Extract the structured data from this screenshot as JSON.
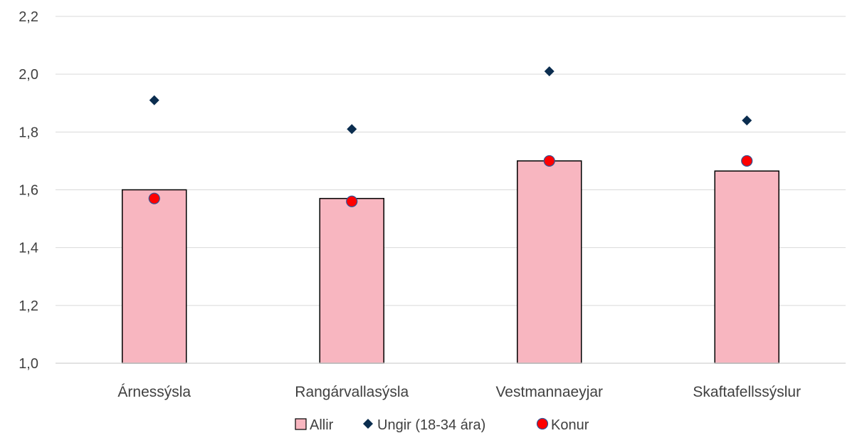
{
  "chart_data": {
    "type": "bar",
    "categories": [
      "Árnessýsla",
      "Rangárvallasýsla",
      "Vestmannaeyjar",
      "Skaftafellssýslur"
    ],
    "series": [
      {
        "name": "Allir",
        "kind": "bar",
        "values": [
          1.6,
          1.57,
          1.7,
          1.665
        ],
        "color": "#F8B6C0",
        "stroke": "#000000"
      },
      {
        "name": "Ungir (18-34 ára)",
        "kind": "marker-diamond",
        "values": [
          1.91,
          1.81,
          2.01,
          1.84
        ],
        "color": "#0B2D4F"
      },
      {
        "name": "Konur",
        "kind": "marker-circle",
        "values": [
          1.57,
          1.56,
          1.7,
          1.7
        ],
        "color": "#FF0000",
        "stroke": "#2F5597"
      }
    ],
    "ylim": [
      1.0,
      2.2
    ],
    "yticks": [
      "1,0",
      "1,2",
      "1,4",
      "1,6",
      "1,8",
      "2,0",
      "2,2"
    ],
    "yticks_values": [
      1.0,
      1.2,
      1.4,
      1.6,
      1.8,
      2.0,
      2.2
    ],
    "grid": true,
    "legend_position": "bottom",
    "title": "",
    "xlabel": "",
    "ylabel": ""
  }
}
